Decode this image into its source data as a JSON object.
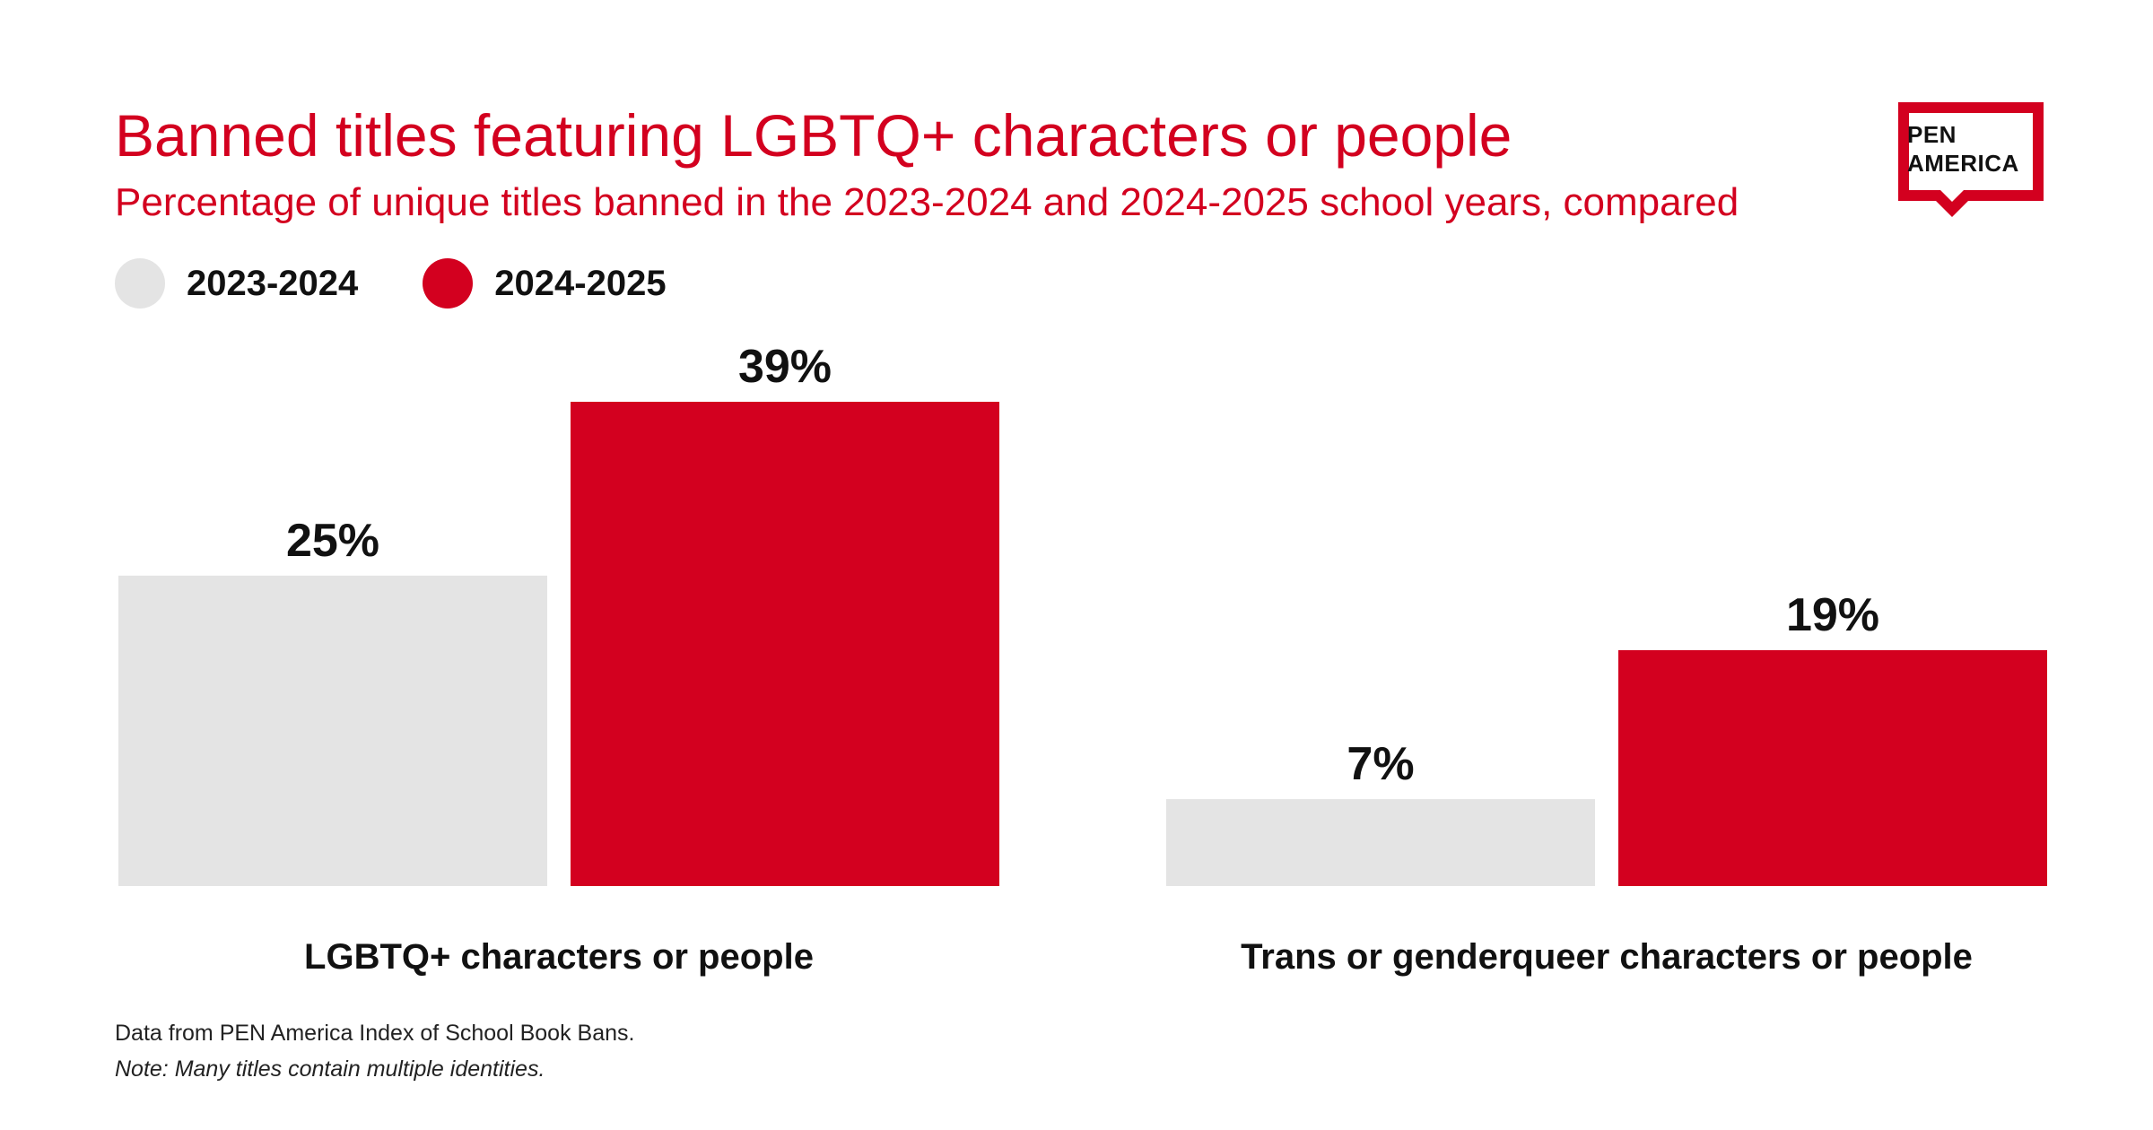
{
  "header": {
    "title": "Banned titles featuring LGBTQ+ characters or people",
    "subtitle": "Percentage of unique titles banned in the 2023-2024 and 2024-2025 school years, compared"
  },
  "logo": {
    "line1": "PEN",
    "line2": "AMERICA"
  },
  "chart_data": {
    "type": "bar",
    "title": "Banned titles featuring LGBTQ+ characters or people",
    "subtitle": "Percentage of unique titles banned in the 2023-2024 and 2024-2025 school years, compared",
    "categories": [
      "LGBTQ+ characters or people",
      "Trans or genderqueer characters or people"
    ],
    "series": [
      {
        "name": "2023-2024",
        "color": "#e4e4e4",
        "values": [
          25,
          7
        ],
        "labels": [
          "25%",
          "7%"
        ]
      },
      {
        "name": "2024-2025",
        "color": "#d3001f",
        "values": [
          39,
          19
        ],
        "labels": [
          "39%",
          "19%"
        ]
      }
    ],
    "unit": "%",
    "ylim": [
      0,
      39
    ],
    "grid": false,
    "legend": "top-left"
  },
  "footer": {
    "source": "Data from PEN America Index of School Book Bans.",
    "note": "Note: Many titles contain multiple identities."
  },
  "colors": {
    "accent": "#d3001f",
    "muted": "#e4e4e4",
    "text": "#111111"
  }
}
